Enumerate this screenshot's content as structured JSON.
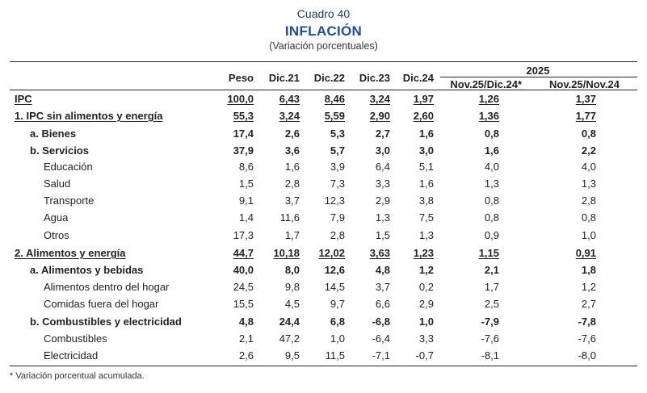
{
  "header": {
    "cuadro": "Cuadro 40",
    "title": "INFLACIÓN",
    "subtitle": "(Variación porcentuales)"
  },
  "table": {
    "year_group": "2025",
    "columns": [
      "Peso",
      "Dic.21",
      "Dic.22",
      "Dic.23",
      "Dic.24",
      "Nov.25/Dic.24*",
      "Nov.25/Nov.24"
    ],
    "rows": [
      {
        "label": "IPC",
        "style": "total",
        "values": [
          "100,0",
          "6,43",
          "8,46",
          "3,24",
          "1,97",
          "1,26",
          "1,37"
        ]
      },
      {
        "label": "1.  IPC sin alimentos y energía",
        "style": "section",
        "values": [
          "55,3",
          "3,24",
          "5,59",
          "2,90",
          "2,60",
          "1,36",
          "1,77"
        ]
      },
      {
        "label": "a.  Bienes",
        "style": "sub",
        "values": [
          "17,4",
          "2,6",
          "5,3",
          "2,7",
          "1,6",
          "0,8",
          "0,8"
        ]
      },
      {
        "label": "b.  Servicios",
        "style": "sub",
        "values": [
          "37,9",
          "3,6",
          "5,7",
          "3,0",
          "3,0",
          "1,6",
          "2,2"
        ]
      },
      {
        "label": "Educación",
        "style": "item",
        "values": [
          "8,6",
          "1,6",
          "3,9",
          "6,4",
          "5,1",
          "4,0",
          "4,0"
        ]
      },
      {
        "label": "Salud",
        "style": "item",
        "values": [
          "1,5",
          "2,8",
          "7,3",
          "3,3",
          "1,6",
          "1,3",
          "1,3"
        ]
      },
      {
        "label": "Transporte",
        "style": "item",
        "values": [
          "9,1",
          "3,7",
          "12,3",
          "2,9",
          "3,8",
          "0,8",
          "2,8"
        ]
      },
      {
        "label": "Agua",
        "style": "item",
        "values": [
          "1,4",
          "11,6",
          "7,9",
          "1,3",
          "7,5",
          "0,8",
          "0,8"
        ]
      },
      {
        "label": "Otros",
        "style": "item",
        "values": [
          "17,3",
          "1,7",
          "2,8",
          "1,5",
          "1,3",
          "0,9",
          "1,0"
        ]
      },
      {
        "label": "2.  Alimentos y energía",
        "style": "section",
        "values": [
          "44,7",
          "10,18",
          "12,02",
          "3,63",
          "1,23",
          "1,15",
          "0,91"
        ]
      },
      {
        "label": "a.  Alimentos y bebidas",
        "style": "sub",
        "values": [
          "40,0",
          "8,0",
          "12,6",
          "4,8",
          "1,2",
          "2,1",
          "1,8"
        ]
      },
      {
        "label": "Alimentos dentro del hogar",
        "style": "item",
        "values": [
          "24,5",
          "9,8",
          "14,5",
          "3,7",
          "0,2",
          "1,7",
          "1,2"
        ]
      },
      {
        "label": "Comidas fuera del hogar",
        "style": "item",
        "values": [
          "15,5",
          "4,5",
          "9,7",
          "6,6",
          "2,9",
          "2,5",
          "2,7"
        ]
      },
      {
        "label": "b.  Combustibles y electricidad",
        "style": "sub",
        "values": [
          "4,8",
          "24,4",
          "6,8",
          "-6,8",
          "1,0",
          "-7,9",
          "-7,8"
        ]
      },
      {
        "label": "Combustibles",
        "style": "item",
        "values": [
          "2,1",
          "47,2",
          "1,0",
          "-6,4",
          "3,3",
          "-7,6",
          "-7,6"
        ]
      },
      {
        "label": "Electricidad",
        "style": "item",
        "values": [
          "2,6",
          "9,5",
          "11,5",
          "-7,1",
          "-0,7",
          "-8,1",
          "-8,0"
        ]
      }
    ]
  },
  "footnote": "* Variación porcentual acumulada."
}
